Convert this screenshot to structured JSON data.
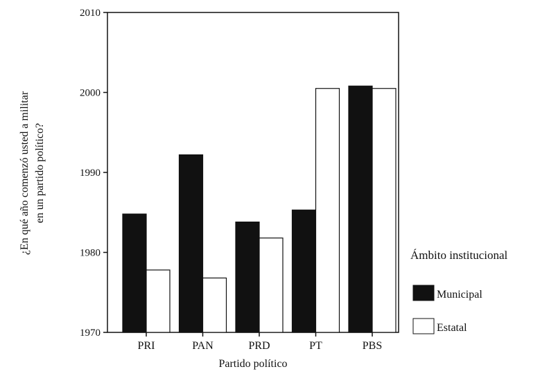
{
  "chart_data": {
    "type": "bar",
    "categories": [
      "PRI",
      "PAN",
      "PRD",
      "PT",
      "PBS"
    ],
    "series": [
      {
        "name": "Municipal",
        "values": [
          1984.8,
          1992.2,
          1983.8,
          1985.3,
          2000.8
        ],
        "color": "#111111"
      },
      {
        "name": "Estatal",
        "values": [
          1977.8,
          1976.8,
          1981.8,
          2000.5,
          2000.5
        ],
        "color": "#ffffff"
      }
    ],
    "xlabel": "Partido político",
    "ylabel": [
      "¿En qué año comenzó usted a militar",
      "en un partido político?"
    ],
    "ylim": [
      1970,
      2010
    ],
    "yticks": [
      1970,
      1980,
      1990,
      2000,
      2010
    ],
    "legend_title": "Ámbito institucional",
    "legend_position": "right",
    "grid": false
  }
}
